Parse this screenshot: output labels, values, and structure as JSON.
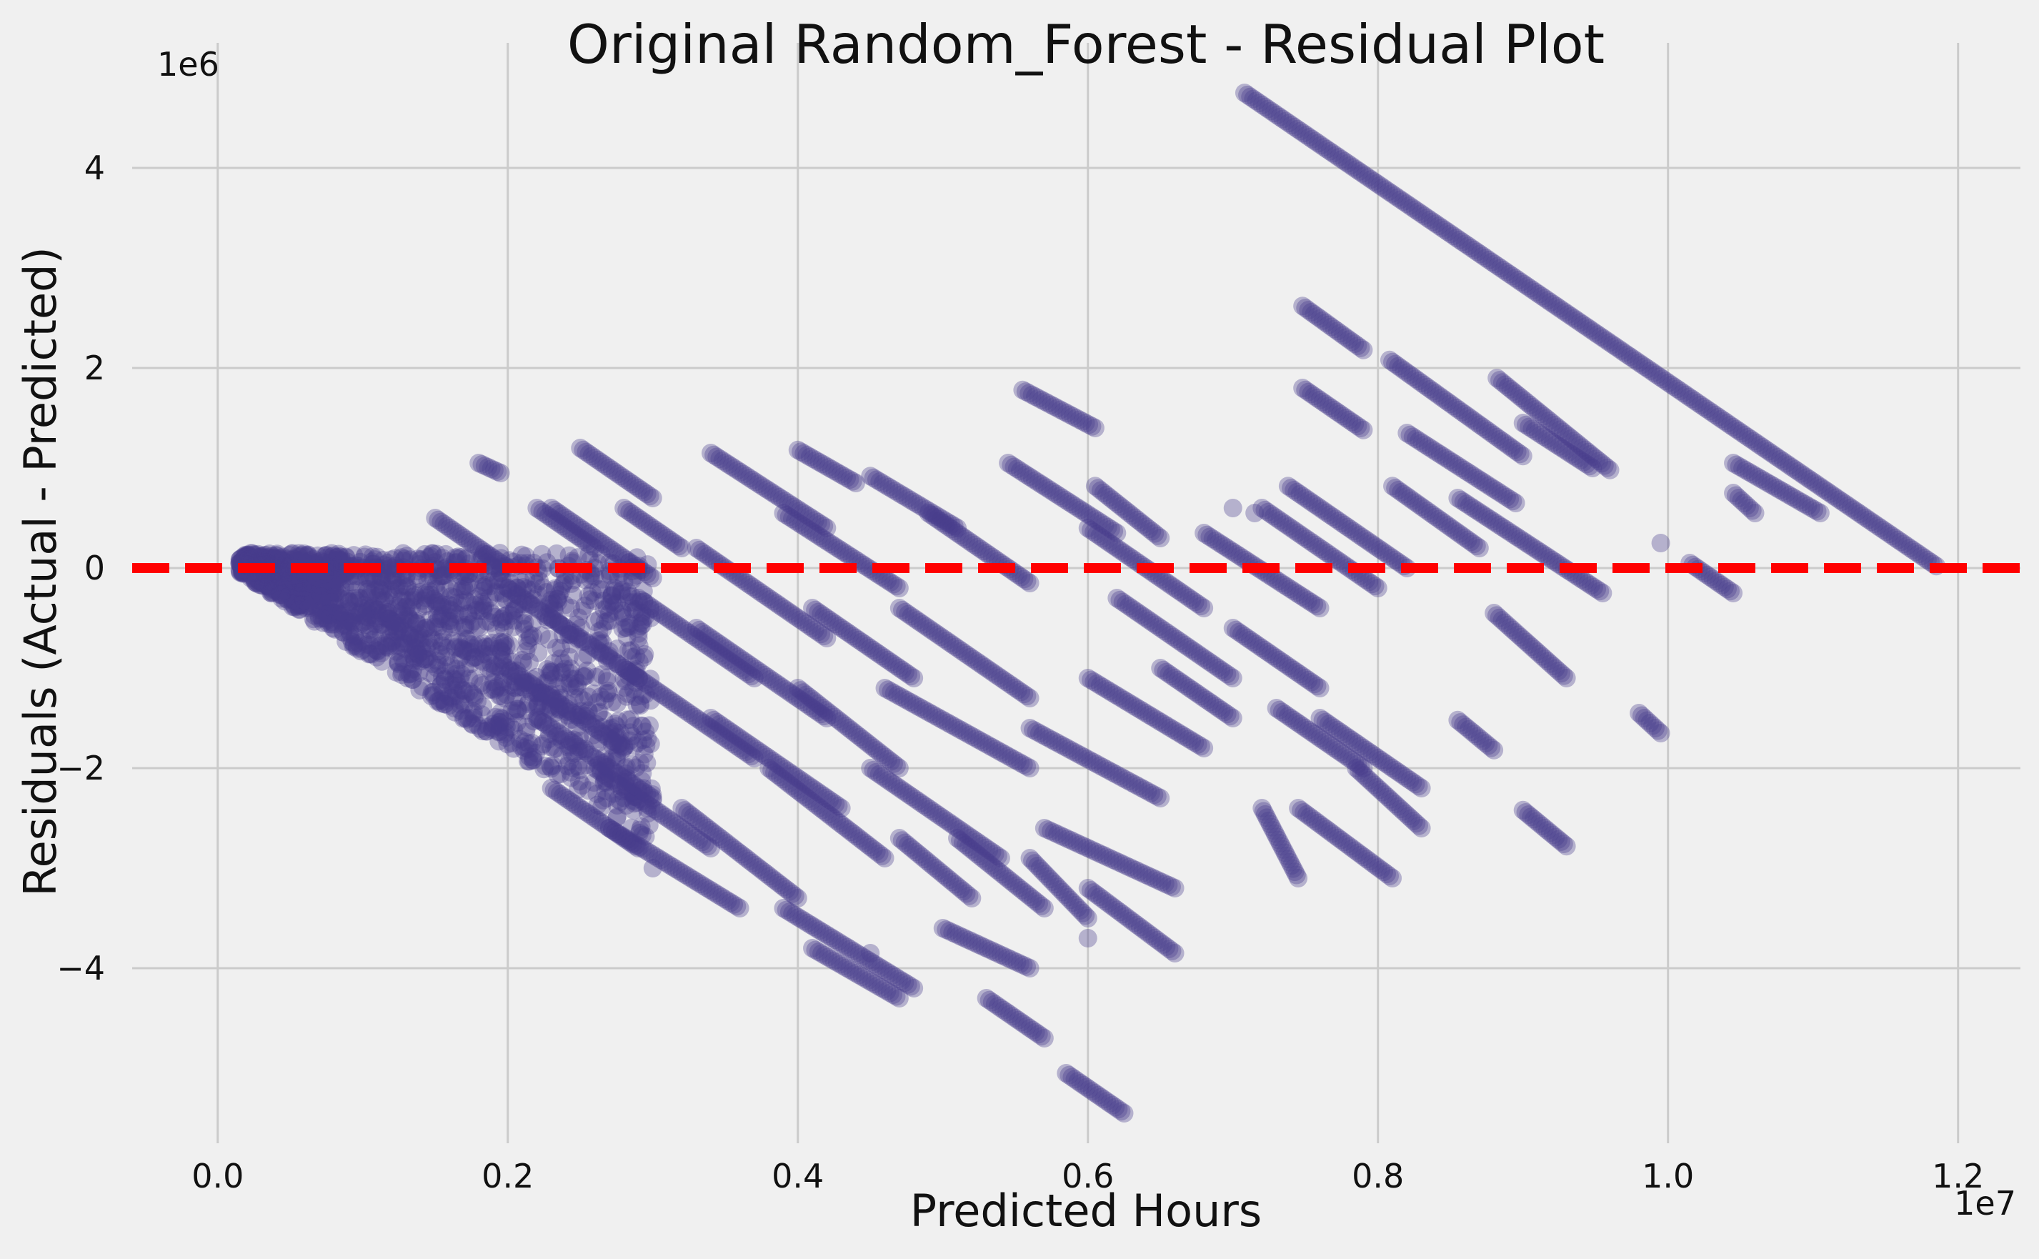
{
  "chart_data": {
    "type": "scatter",
    "title": "Original Random_Forest - Residual Plot",
    "xlabel": "Predicted Hours",
    "ylabel": "Residuals (Actual - Predicted)",
    "x_offset_label": "1e7",
    "y_offset_label": "1e6",
    "xlim": [
      -0.059,
      1.243
    ],
    "ylim": [
      -5.75,
      5.25
    ],
    "x_ticks": [
      0.0,
      0.2,
      0.4,
      0.6,
      0.8,
      1.0,
      1.2
    ],
    "x_tick_labels": [
      "0.0",
      "0.2",
      "0.4",
      "0.6",
      "0.8",
      "1.0",
      "1.2"
    ],
    "y_ticks": [
      -4,
      -2,
      0,
      2,
      4
    ],
    "y_tick_labels": [
      "−4",
      "−2",
      "0",
      "2",
      "4"
    ],
    "grid": true,
    "reference_line": {
      "y": 0,
      "style": "dashed",
      "color": "#ff0000"
    },
    "marker_color": "#483d8b",
    "marker_alpha": 0.35,
    "x_units_note": "x values in units of 1e7 hours",
    "y_units_note": "y values in units of 1e6 hours",
    "dense_region": {
      "description": "wedge of points bounded by residual = -predicted",
      "x_range": [
        0.015,
        0.3
      ],
      "y_top": 0.15
    },
    "segments": [
      {
        "x0": 0.708,
        "y0": 4.75,
        "x1": 1.185,
        "y1": 0.02
      },
      {
        "x0": 0.748,
        "y0": 2.62,
        "x1": 0.79,
        "y1": 2.18
      },
      {
        "x0": 0.748,
        "y0": 1.8,
        "x1": 0.79,
        "y1": 1.38
      },
      {
        "x0": 0.808,
        "y0": 2.08,
        "x1": 0.9,
        "y1": 1.12
      },
      {
        "x0": 0.882,
        "y0": 1.9,
        "x1": 0.96,
        "y1": 0.98
      },
      {
        "x0": 0.9,
        "y0": 1.45,
        "x1": 0.948,
        "y1": 1.0
      },
      {
        "x0": 0.738,
        "y0": 0.82,
        "x1": 0.82,
        "y1": 0.0
      },
      {
        "x0": 0.82,
        "y0": 1.35,
        "x1": 0.895,
        "y1": 0.65
      },
      {
        "x0": 0.81,
        "y0": 0.82,
        "x1": 0.87,
        "y1": 0.2
      },
      {
        "x0": 0.855,
        "y0": 0.7,
        "x1": 0.955,
        "y1": -0.25
      },
      {
        "x0": 1.045,
        "y0": 1.05,
        "x1": 1.105,
        "y1": 0.55
      },
      {
        "x0": 1.045,
        "y0": 0.75,
        "x1": 1.06,
        "y1": 0.55
      },
      {
        "x0": 1.015,
        "y0": 0.05,
        "x1": 1.045,
        "y1": -0.25
      },
      {
        "x0": 0.855,
        "y0": -1.52,
        "x1": 0.88,
        "y1": -1.82
      },
      {
        "x0": 0.9,
        "y0": -2.42,
        "x1": 0.93,
        "y1": -2.78
      },
      {
        "x0": 0.98,
        "y0": -1.45,
        "x1": 0.995,
        "y1": -1.65
      },
      {
        "x0": 0.88,
        "y0": -0.45,
        "x1": 0.93,
        "y1": -1.1
      },
      {
        "x0": 0.68,
        "y0": 0.35,
        "x1": 0.76,
        "y1": -0.4
      },
      {
        "x0": 0.7,
        "y0": -0.6,
        "x1": 0.76,
        "y1": -1.2
      },
      {
        "x0": 0.72,
        "y0": 0.6,
        "x1": 0.8,
        "y1": -0.2
      },
      {
        "x0": 0.73,
        "y0": -1.4,
        "x1": 0.79,
        "y1": -2.0
      },
      {
        "x0": 0.76,
        "y0": -1.5,
        "x1": 0.83,
        "y1": -2.2
      },
      {
        "x0": 0.785,
        "y0": -2.0,
        "x1": 0.83,
        "y1": -2.6
      },
      {
        "x0": 0.745,
        "y0": -2.4,
        "x1": 0.81,
        "y1": -3.1
      },
      {
        "x0": 0.72,
        "y0": -2.4,
        "x1": 0.745,
        "y1": -3.1
      },
      {
        "x0": 0.555,
        "y0": 1.78,
        "x1": 0.605,
        "y1": 1.4
      },
      {
        "x0": 0.545,
        "y0": 1.05,
        "x1": 0.62,
        "y1": 0.35
      },
      {
        "x0": 0.605,
        "y0": 0.82,
        "x1": 0.65,
        "y1": 0.3
      },
      {
        "x0": 0.6,
        "y0": 0.4,
        "x1": 0.68,
        "y1": -0.4
      },
      {
        "x0": 0.62,
        "y0": -0.3,
        "x1": 0.7,
        "y1": -1.1
      },
      {
        "x0": 0.6,
        "y0": -1.1,
        "x1": 0.68,
        "y1": -1.8
      },
      {
        "x0": 0.65,
        "y0": -1.0,
        "x1": 0.7,
        "y1": -1.5
      },
      {
        "x0": 0.56,
        "y0": -1.6,
        "x1": 0.65,
        "y1": -2.3
      },
      {
        "x0": 0.57,
        "y0": -2.6,
        "x1": 0.66,
        "y1": -3.2
      },
      {
        "x0": 0.6,
        "y0": -3.2,
        "x1": 0.66,
        "y1": -3.85
      },
      {
        "x0": 0.56,
        "y0": -2.9,
        "x1": 0.6,
        "y1": -3.5
      },
      {
        "x0": 0.585,
        "y0": -5.05,
        "x1": 0.625,
        "y1": -5.45
      },
      {
        "x0": 0.53,
        "y0": -4.3,
        "x1": 0.57,
        "y1": -4.7
      },
      {
        "x0": 0.5,
        "y0": -3.6,
        "x1": 0.56,
        "y1": -4.0
      },
      {
        "x0": 0.51,
        "y0": -2.7,
        "x1": 0.57,
        "y1": -3.4
      },
      {
        "x0": 0.45,
        "y0": 0.92,
        "x1": 0.51,
        "y1": 0.4
      },
      {
        "x0": 0.49,
        "y0": 0.55,
        "x1": 0.56,
        "y1": -0.15
      },
      {
        "x0": 0.47,
        "y0": -0.4,
        "x1": 0.56,
        "y1": -1.3
      },
      {
        "x0": 0.46,
        "y0": -1.2,
        "x1": 0.56,
        "y1": -2.0
      },
      {
        "x0": 0.45,
        "y0": -2.0,
        "x1": 0.54,
        "y1": -2.9
      },
      {
        "x0": 0.47,
        "y0": -2.7,
        "x1": 0.52,
        "y1": -3.3
      },
      {
        "x0": 0.4,
        "y0": 1.18,
        "x1": 0.44,
        "y1": 0.85
      },
      {
        "x0": 0.39,
        "y0": 0.55,
        "x1": 0.47,
        "y1": -0.2
      },
      {
        "x0": 0.41,
        "y0": -0.4,
        "x1": 0.48,
        "y1": -1.1
      },
      {
        "x0": 0.4,
        "y0": -1.2,
        "x1": 0.47,
        "y1": -2.0
      },
      {
        "x0": 0.38,
        "y0": -2.0,
        "x1": 0.46,
        "y1": -2.9
      },
      {
        "x0": 0.39,
        "y0": -3.4,
        "x1": 0.48,
        "y1": -4.2
      },
      {
        "x0": 0.41,
        "y0": -3.8,
        "x1": 0.47,
        "y1": -4.3
      },
      {
        "x0": 0.34,
        "y0": 1.15,
        "x1": 0.42,
        "y1": 0.4
      },
      {
        "x0": 0.33,
        "y0": 0.2,
        "x1": 0.42,
        "y1": -0.7
      },
      {
        "x0": 0.33,
        "y0": -0.6,
        "x1": 0.42,
        "y1": -1.5
      },
      {
        "x0": 0.34,
        "y0": -1.5,
        "x1": 0.43,
        "y1": -2.4
      },
      {
        "x0": 0.32,
        "y0": -2.4,
        "x1": 0.4,
        "y1": -3.3
      },
      {
        "x0": 0.25,
        "y0": 1.2,
        "x1": 0.3,
        "y1": 0.7
      },
      {
        "x0": 0.28,
        "y0": 0.6,
        "x1": 0.32,
        "y1": 0.2
      },
      {
        "x0": 0.23,
        "y0": 0.6,
        "x1": 0.3,
        "y1": -0.1
      },
      {
        "x0": 0.29,
        "y0": -0.3,
        "x1": 0.37,
        "y1": -1.1
      },
      {
        "x0": 0.28,
        "y0": -1.0,
        "x1": 0.37,
        "y1": -1.9
      },
      {
        "x0": 0.26,
        "y0": -2.0,
        "x1": 0.34,
        "y1": -2.8
      },
      {
        "x0": 0.27,
        "y0": -2.6,
        "x1": 0.36,
        "y1": -3.4
      },
      {
        "x0": 0.18,
        "y0": 1.05,
        "x1": 0.195,
        "y1": 0.95
      },
      {
        "x0": 0.15,
        "y0": 0.5,
        "x1": 0.2,
        "y1": 0.0
      },
      {
        "x0": 0.22,
        "y0": 0.6,
        "x1": 0.26,
        "y1": 0.2
      },
      {
        "x0": 0.2,
        "y0": -0.2,
        "x1": 0.29,
        "y1": -1.1
      },
      {
        "x0": 0.2,
        "y0": -1.0,
        "x1": 0.28,
        "y1": -1.8
      },
      {
        "x0": 0.22,
        "y0": -1.5,
        "x1": 0.3,
        "y1": -2.3
      },
      {
        "x0": 0.23,
        "y0": -2.2,
        "x1": 0.29,
        "y1": -2.8
      }
    ],
    "isolated_points": [
      {
        "x": 0.715,
        "y": 0.55
      },
      {
        "x": 0.995,
        "y": 0.25
      },
      {
        "x": 0.3,
        "y": -3.0
      },
      {
        "x": 0.45,
        "y": -3.85
      },
      {
        "x": 0.6,
        "y": -3.7
      },
      {
        "x": 0.7,
        "y": 0.6
      },
      {
        "x": 0.26,
        "y": 0.0
      }
    ]
  }
}
